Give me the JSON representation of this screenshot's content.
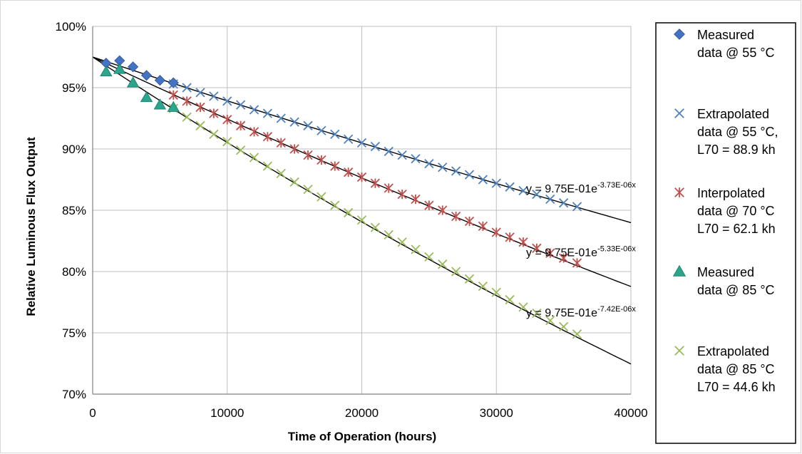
{
  "chart_data": {
    "type": "scatter",
    "title": "",
    "xlabel": "Time of Operation (hours)",
    "ylabel": "Relative Luminous Flux Output",
    "xlim": [
      0,
      40000
    ],
    "ylim": [
      70,
      100
    ],
    "x_ticks": [
      0,
      10000,
      20000,
      30000,
      40000
    ],
    "y_ticks": [
      70,
      75,
      80,
      85,
      90,
      95,
      100
    ],
    "x_tick_labels": [
      "0",
      "10000",
      "20000",
      "30000",
      "40000"
    ],
    "y_tick_labels": [
      "70%",
      "75%",
      "80%",
      "85%",
      "90%",
      "95%",
      "100%"
    ],
    "grid": true,
    "legend_position": "right",
    "series": [
      {
        "name": "Measured data @ 55 °C",
        "legend_lines": [
          "Measured",
          "data @ 55 °C"
        ],
        "marker": "diamond",
        "color": "#4472C4",
        "x": [
          1000,
          2000,
          3000,
          4000,
          5000,
          6000
        ],
        "y": [
          97.0,
          97.2,
          96.7,
          96.0,
          95.6,
          95.4
        ]
      },
      {
        "name": "Extrapolated data @ 55 °C, L70 = 88.9 kh",
        "legend_lines": [
          "Extrapolated",
          "data @ 55 °C,",
          "L70 = 88.9 kh"
        ],
        "marker": "x",
        "color": "#4F81BD",
        "x": [
          6000,
          7000,
          8000,
          9000,
          10000,
          11000,
          12000,
          13000,
          14000,
          15000,
          16000,
          17000,
          18000,
          19000,
          20000,
          21000,
          22000,
          23000,
          24000,
          25000,
          26000,
          27000,
          28000,
          29000,
          30000,
          31000,
          32000,
          33000,
          34000,
          35000,
          36000
        ],
        "y": [
          95.3,
          95.0,
          94.6,
          94.3,
          93.9,
          93.6,
          93.2,
          92.9,
          92.5,
          92.2,
          91.9,
          91.5,
          91.2,
          90.8,
          90.5,
          90.2,
          89.8,
          89.5,
          89.2,
          88.8,
          88.5,
          88.2,
          87.9,
          87.5,
          87.2,
          86.9,
          86.6,
          86.3,
          85.9,
          85.6,
          85.3
        ]
      },
      {
        "name": "Interpolated data @ 70 °C L70 = 62.1 kh",
        "legend_lines": [
          "Interpolated",
          "data @ 70 °C",
          "L70 = 62.1 kh"
        ],
        "marker": "asterisk",
        "color": "#C0504D",
        "x": [
          6000,
          7000,
          8000,
          9000,
          10000,
          11000,
          12000,
          13000,
          14000,
          15000,
          16000,
          17000,
          18000,
          19000,
          20000,
          21000,
          22000,
          23000,
          24000,
          25000,
          26000,
          27000,
          28000,
          29000,
          30000,
          31000,
          32000,
          33000,
          34000,
          35000,
          36000
        ],
        "y": [
          94.4,
          93.9,
          93.4,
          92.9,
          92.4,
          91.9,
          91.4,
          91.0,
          90.5,
          90.0,
          89.5,
          89.1,
          88.6,
          88.1,
          87.7,
          87.2,
          86.8,
          86.3,
          85.9,
          85.4,
          85.0,
          84.5,
          84.1,
          83.7,
          83.2,
          82.8,
          82.4,
          81.9,
          81.5,
          81.1,
          80.7
        ]
      },
      {
        "name": "Measured data @ 85 °C",
        "legend_lines": [
          "Measured",
          "data @ 85 °C"
        ],
        "marker": "triangle",
        "color": "#2CA58D",
        "x": [
          1000,
          2000,
          3000,
          4000,
          5000,
          6000
        ],
        "y": [
          96.3,
          96.5,
          95.4,
          94.2,
          93.6,
          93.4
        ]
      },
      {
        "name": "Extrapolated data @ 85 °C L70 = 44.6 kh",
        "legend_lines": [
          "Extrapolated",
          "data @ 85 °C",
          "L70 = 44.6 kh"
        ],
        "marker": "x",
        "color": "#9BBB59",
        "x": [
          6000,
          7000,
          8000,
          9000,
          10000,
          11000,
          12000,
          13000,
          14000,
          15000,
          16000,
          17000,
          18000,
          19000,
          20000,
          21000,
          22000,
          23000,
          24000,
          25000,
          26000,
          27000,
          28000,
          29000,
          30000,
          31000,
          32000,
          33000,
          34000,
          35000,
          36000
        ],
        "y": [
          93.3,
          92.6,
          91.9,
          91.2,
          90.6,
          89.9,
          89.3,
          88.6,
          88.0,
          87.3,
          86.7,
          86.1,
          85.4,
          84.8,
          84.2,
          83.6,
          83.0,
          82.4,
          81.8,
          81.2,
          80.6,
          80.0,
          79.4,
          78.8,
          78.3,
          77.7,
          77.1,
          76.6,
          76.0,
          75.5,
          74.9
        ]
      }
    ],
    "trendlines": [
      {
        "a": 0.975,
        "b": 3.73e-06,
        "label_base": "y = 9.75E-01e",
        "label_exp": "-3.73E-06x",
        "label_at": [
          32000,
          86.8
        ]
      },
      {
        "a": 0.975,
        "b": 5.33e-06,
        "label_base": "y = 9.75E-01e",
        "label_exp": "-5.33E-06x",
        "label_at": [
          32000,
          81.6
        ]
      },
      {
        "a": 0.975,
        "b": 7.42e-06,
        "label_base": "y = 9.75E-01e",
        "label_exp": "-7.42E-06x",
        "label_at": [
          32000,
          76.7
        ]
      }
    ]
  }
}
